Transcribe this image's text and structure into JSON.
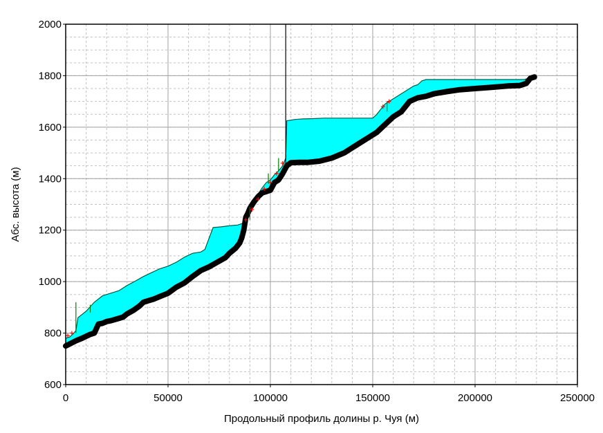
{
  "chart_data": {
    "type": "area",
    "title": "",
    "xlabel": "Продольный профиль долины р. Чуя (м)",
    "ylabel": "Абс. высота (м)",
    "xlim": [
      0,
      250000
    ],
    "ylim": [
      600,
      2000
    ],
    "grid": true,
    "legend": "none",
    "x_ticks": [
      0,
      50000,
      100000,
      150000,
      200000,
      250000
    ],
    "x_tick_labels": [
      "0",
      "50000",
      "100000",
      "150000",
      "200000",
      "250000"
    ],
    "y_ticks": [
      600,
      800,
      1000,
      1200,
      1400,
      1600,
      1800,
      2000
    ],
    "y_tick_labels": [
      "600",
      "800",
      "1000",
      "1200",
      "1400",
      "1600",
      "1800",
      "2000"
    ],
    "colors": {
      "fill": "#00ffff",
      "riverbed": "#000000",
      "surface": "#008000",
      "markers": "#ff0000",
      "surface_edge": "#0000ff",
      "grid_major": "#a0a0a0",
      "grid_minor": "#c0c0c0"
    },
    "series": [
      {
        "role": "riverbed",
        "x": [
          0,
          2000,
          5000,
          8000,
          12000,
          14000,
          16000,
          18000,
          20000,
          22000,
          25000,
          28000,
          30000,
          33000,
          36000,
          38000,
          40000,
          43000,
          46000,
          50000,
          54000,
          58000,
          62000,
          66000,
          70000,
          74000,
          78000,
          80000,
          83000,
          85000,
          86000,
          87000,
          88000,
          89000,
          90000,
          92000,
          94000,
          96000,
          98000,
          100000,
          102000,
          104000,
          106000,
          108000,
          110000,
          114000,
          118000,
          124000,
          130000,
          136000,
          140000,
          144000,
          148000,
          152000,
          156000,
          160000,
          164000,
          168000,
          172000,
          176000,
          180000,
          186000,
          192000,
          200000,
          208000,
          216000,
          222000,
          225000,
          227000,
          229000
        ],
        "y": [
          750,
          758,
          770,
          780,
          795,
          800,
          835,
          838,
          845,
          848,
          855,
          862,
          875,
          888,
          905,
          920,
          925,
          932,
          942,
          955,
          978,
          995,
          1020,
          1043,
          1057,
          1075,
          1093,
          1110,
          1130,
          1150,
          1170,
          1200,
          1250,
          1265,
          1285,
          1310,
          1330,
          1345,
          1350,
          1355,
          1385,
          1395,
          1420,
          1450,
          1462,
          1463,
          1463,
          1468,
          1480,
          1500,
          1520,
          1540,
          1560,
          1580,
          1610,
          1640,
          1660,
          1700,
          1714,
          1720,
          1730,
          1738,
          1745,
          1750,
          1755,
          1760,
          1762,
          1770,
          1790,
          1795
        ]
      },
      {
        "role": "water-surface",
        "x": [
          0,
          2000,
          4000,
          5000,
          6000,
          10000,
          14000,
          18000,
          22000,
          26000,
          30000,
          34000,
          38000,
          42000,
          46000,
          50000,
          54000,
          58000,
          62000,
          66000,
          68000,
          72000,
          76000,
          80000,
          84000,
          86000,
          87000,
          88000,
          89000,
          90000,
          92000,
          94000,
          96000,
          98000,
          100000,
          102000,
          104000,
          106000,
          107500,
          108000,
          112000,
          116000,
          120000,
          126000,
          132000,
          138000,
          144000,
          150000,
          152000,
          154000,
          156000,
          158000,
          160000,
          162000,
          164000,
          166000,
          168000,
          170000,
          172000,
          174000,
          176000,
          200000,
          220000,
          224000,
          226000,
          228000,
          229000
        ],
        "y": [
          780,
          785,
          800,
          810,
          860,
          885,
          920,
          945,
          955,
          965,
          985,
          1002,
          1020,
          1035,
          1050,
          1060,
          1075,
          1095,
          1110,
          1115,
          1125,
          1210,
          1213,
          1217,
          1220,
          1225,
          1225,
          1245,
          1270,
          1290,
          1320,
          1340,
          1365,
          1385,
          1395,
          1415,
          1430,
          1450,
          1480,
          1625,
          1630,
          1632,
          1633,
          1635,
          1635,
          1635,
          1635,
          1635,
          1650,
          1670,
          1690,
          1700,
          1710,
          1720,
          1730,
          1740,
          1750,
          1760,
          1765,
          1780,
          1785,
          1785,
          1785,
          1785,
          1790,
          1795,
          1800
        ]
      }
    ]
  }
}
